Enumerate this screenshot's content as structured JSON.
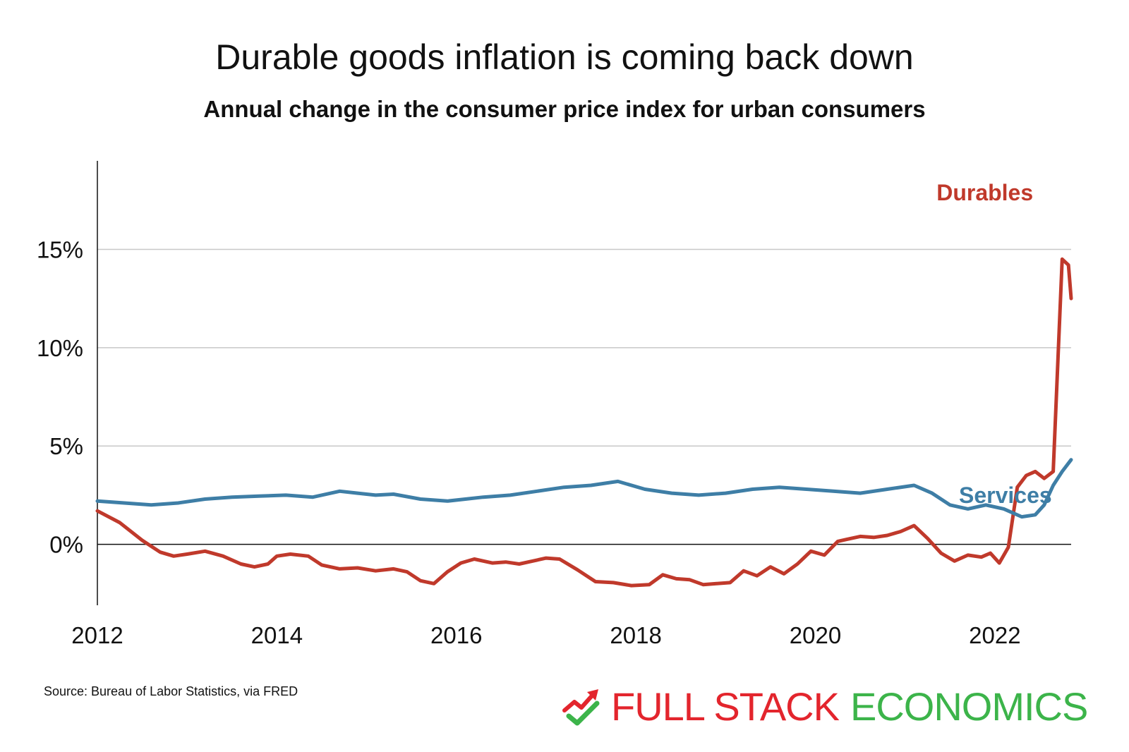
{
  "title": "Durable goods inflation is coming back down",
  "subtitle": "Annual change in the consumer price index for urban consumers",
  "source": "Source: Bureau of Labor Statistics, via FRED",
  "brand": {
    "word1": "FULL STACK",
    "word2": "ECONOMICS",
    "icon": "trend-arrow-check-icon",
    "color1": "#e3252d",
    "color2": "#3cb44a"
  },
  "chart_data": {
    "type": "line",
    "title": "Durable goods inflation is coming back down",
    "subtitle": "Annual change in the consumer price index for urban consumers",
    "xlim": [
      2012,
      2022.85
    ],
    "ylim": [
      -3.1,
      19.5
    ],
    "x_ticks": [
      2012,
      2014,
      2016,
      2018,
      2020,
      2022
    ],
    "x_tick_labels": [
      "2012",
      "2014",
      "2016",
      "2018",
      "2020",
      "2022"
    ],
    "y_ticks": [
      0,
      5,
      10,
      15
    ],
    "y_tick_labels": [
      "0%",
      "5%",
      "10%",
      "15%"
    ],
    "grid": "horizontal",
    "zero_line": true,
    "series": [
      {
        "name": "Durables",
        "color": "#c0392b",
        "label_anchor": [
          2021.35,
          17.5
        ],
        "points": [
          [
            2012.0,
            1.7
          ],
          [
            2012.25,
            1.1
          ],
          [
            2012.5,
            0.2
          ],
          [
            2012.7,
            -0.4
          ],
          [
            2012.85,
            -0.6
          ],
          [
            2013.0,
            -0.5
          ],
          [
            2013.2,
            -0.35
          ],
          [
            2013.4,
            -0.6
          ],
          [
            2013.6,
            -1.0
          ],
          [
            2013.75,
            -1.15
          ],
          [
            2013.9,
            -1.0
          ],
          [
            2014.0,
            -0.6
          ],
          [
            2014.15,
            -0.5
          ],
          [
            2014.35,
            -0.6
          ],
          [
            2014.5,
            -1.05
          ],
          [
            2014.7,
            -1.25
          ],
          [
            2014.9,
            -1.2
          ],
          [
            2015.1,
            -1.35
          ],
          [
            2015.3,
            -1.25
          ],
          [
            2015.45,
            -1.4
          ],
          [
            2015.6,
            -1.85
          ],
          [
            2015.75,
            -2.0
          ],
          [
            2015.9,
            -1.4
          ],
          [
            2016.05,
            -0.95
          ],
          [
            2016.2,
            -0.75
          ],
          [
            2016.4,
            -0.95
          ],
          [
            2016.55,
            -0.9
          ],
          [
            2016.7,
            -1.0
          ],
          [
            2016.85,
            -0.85
          ],
          [
            2017.0,
            -0.7
          ],
          [
            2017.15,
            -0.75
          ],
          [
            2017.35,
            -1.3
          ],
          [
            2017.55,
            -1.9
          ],
          [
            2017.75,
            -1.95
          ],
          [
            2017.95,
            -2.1
          ],
          [
            2018.15,
            -2.05
          ],
          [
            2018.3,
            -1.55
          ],
          [
            2018.45,
            -1.75
          ],
          [
            2018.6,
            -1.8
          ],
          [
            2018.75,
            -2.05
          ],
          [
            2018.9,
            -2.0
          ],
          [
            2019.05,
            -1.95
          ],
          [
            2019.2,
            -1.35
          ],
          [
            2019.35,
            -1.6
          ],
          [
            2019.5,
            -1.15
          ],
          [
            2019.65,
            -1.5
          ],
          [
            2019.8,
            -1.0
          ],
          [
            2019.95,
            -0.35
          ],
          [
            2020.1,
            -0.55
          ],
          [
            2020.25,
            0.15
          ],
          [
            2020.35,
            0.25
          ],
          [
            2020.5,
            0.4
          ],
          [
            2020.65,
            0.35
          ],
          [
            2020.8,
            0.45
          ],
          [
            2020.95,
            0.65
          ],
          [
            2021.1,
            0.95
          ],
          [
            2021.25,
            0.3
          ],
          [
            2021.4,
            -0.45
          ],
          [
            2021.55,
            -0.85
          ],
          [
            2021.7,
            -0.55
          ],
          [
            2021.85,
            -0.65
          ],
          [
            2021.95,
            -0.45
          ],
          [
            2022.05,
            -0.95
          ],
          [
            2022.15,
            -0.15
          ],
          [
            2022.25,
            2.9
          ],
          [
            2022.35,
            3.5
          ],
          [
            2022.45,
            3.7
          ],
          [
            2022.55,
            3.35
          ],
          [
            2022.65,
            3.7
          ],
          [
            2022.75,
            14.5
          ],
          [
            2022.82,
            14.2
          ],
          [
            2022.85,
            12.5
          ]
        ]
      },
      {
        "name": "Services",
        "color": "#3e7ea6",
        "label_anchor": [
          2021.6,
          2.1
        ],
        "points": [
          [
            2012.0,
            2.2
          ],
          [
            2012.3,
            2.1
          ],
          [
            2012.6,
            2.0
          ],
          [
            2012.9,
            2.1
          ],
          [
            2013.2,
            2.3
          ],
          [
            2013.5,
            2.4
          ],
          [
            2013.8,
            2.45
          ],
          [
            2014.1,
            2.5
          ],
          [
            2014.4,
            2.4
          ],
          [
            2014.7,
            2.7
          ],
          [
            2014.9,
            2.6
          ],
          [
            2015.1,
            2.5
          ],
          [
            2015.3,
            2.55
          ],
          [
            2015.6,
            2.3
          ],
          [
            2015.9,
            2.2
          ],
          [
            2016.1,
            2.3
          ],
          [
            2016.3,
            2.4
          ],
          [
            2016.6,
            2.5
          ],
          [
            2016.9,
            2.7
          ],
          [
            2017.2,
            2.9
          ],
          [
            2017.5,
            3.0
          ],
          [
            2017.8,
            3.2
          ],
          [
            2018.1,
            2.8
          ],
          [
            2018.4,
            2.6
          ],
          [
            2018.7,
            2.5
          ],
          [
            2019.0,
            2.6
          ],
          [
            2019.3,
            2.8
          ],
          [
            2019.6,
            2.9
          ],
          [
            2019.9,
            2.8
          ],
          [
            2020.2,
            2.7
          ],
          [
            2020.5,
            2.6
          ],
          [
            2020.8,
            2.8
          ],
          [
            2021.1,
            3.0
          ],
          [
            2021.3,
            2.6
          ],
          [
            2021.5,
            2.0
          ],
          [
            2021.7,
            1.8
          ],
          [
            2021.9,
            2.0
          ],
          [
            2022.1,
            1.8
          ],
          [
            2022.3,
            1.4
          ],
          [
            2022.45,
            1.5
          ],
          [
            2022.55,
            2.0
          ],
          [
            2022.65,
            3.0
          ],
          [
            2022.75,
            3.7
          ],
          [
            2022.85,
            4.3
          ]
        ]
      }
    ]
  }
}
